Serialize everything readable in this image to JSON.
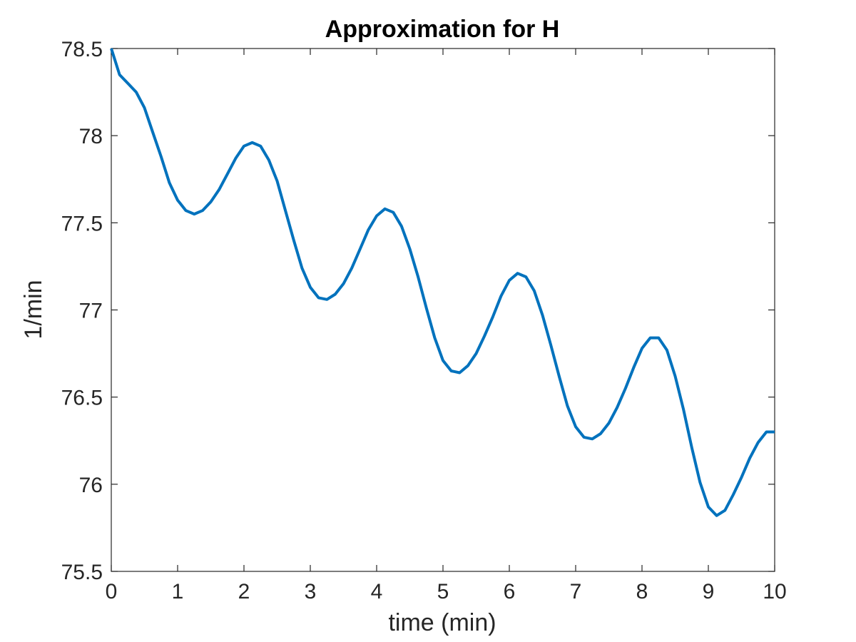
{
  "chart_data": {
    "type": "line",
    "title": "Approximation for H",
    "xlabel": "time (min)",
    "ylabel": "1/min",
    "xlim": [
      0,
      10
    ],
    "ylim": [
      75.5,
      78.5
    ],
    "xticks": [
      0,
      1,
      2,
      3,
      4,
      5,
      6,
      7,
      8,
      9,
      10
    ],
    "yticks": [
      75.5,
      76,
      76.5,
      77,
      77.5,
      78,
      78.5
    ],
    "xtick_labels": [
      "0",
      "1",
      "2",
      "3",
      "4",
      "5",
      "6",
      "7",
      "8",
      "9",
      "10"
    ],
    "ytick_labels": [
      "75.5",
      "76",
      "76.5",
      "77",
      "77.5",
      "78",
      "78.5"
    ],
    "grid": false,
    "box": true,
    "series": [
      {
        "color": "#0072BD",
        "x": [
          0,
          0.125,
          0.25,
          0.375,
          0.5,
          0.625,
          0.75,
          0.875,
          1.0,
          1.125,
          1.25,
          1.375,
          1.5,
          1.625,
          1.75,
          1.875,
          2.0,
          2.125,
          2.25,
          2.375,
          2.5,
          2.625,
          2.75,
          2.875,
          3.0,
          3.125,
          3.25,
          3.375,
          3.5,
          3.625,
          3.75,
          3.875,
          4.0,
          4.125,
          4.25,
          4.375,
          4.5,
          4.625,
          4.75,
          4.875,
          5.0,
          5.125,
          5.25,
          5.375,
          5.5,
          5.625,
          5.75,
          5.875,
          6.0,
          6.125,
          6.25,
          6.375,
          6.5,
          6.625,
          6.75,
          6.875,
          7.0,
          7.125,
          7.25,
          7.375,
          7.5,
          7.625,
          7.75,
          7.875,
          8.0,
          8.125,
          8.25,
          8.375,
          8.5,
          8.625,
          8.75,
          8.875,
          9.0,
          9.125,
          9.25,
          9.375,
          9.5,
          9.625,
          9.75,
          9.875,
          10.0
        ],
        "y": [
          78.5,
          78.35,
          78.3,
          78.25,
          78.16,
          78.02,
          77.88,
          77.73,
          77.63,
          77.57,
          77.55,
          77.57,
          77.62,
          77.69,
          77.78,
          77.87,
          77.94,
          77.96,
          77.94,
          77.86,
          77.74,
          77.57,
          77.4,
          77.24,
          77.13,
          77.07,
          77.06,
          77.09,
          77.15,
          77.24,
          77.35,
          77.46,
          77.54,
          77.58,
          77.56,
          77.48,
          77.35,
          77.19,
          77.01,
          76.84,
          76.71,
          76.65,
          76.64,
          76.68,
          76.75,
          76.85,
          76.96,
          77.08,
          77.17,
          77.21,
          77.19,
          77.11,
          76.97,
          76.8,
          76.62,
          76.45,
          76.33,
          76.27,
          76.26,
          76.29,
          76.35,
          76.44,
          76.55,
          76.67,
          76.78,
          76.84,
          76.84,
          76.77,
          76.62,
          76.43,
          76.21,
          76.01,
          75.87,
          75.82,
          75.85,
          75.94,
          76.04,
          76.15,
          76.24,
          76.3,
          76.3
        ]
      }
    ]
  }
}
